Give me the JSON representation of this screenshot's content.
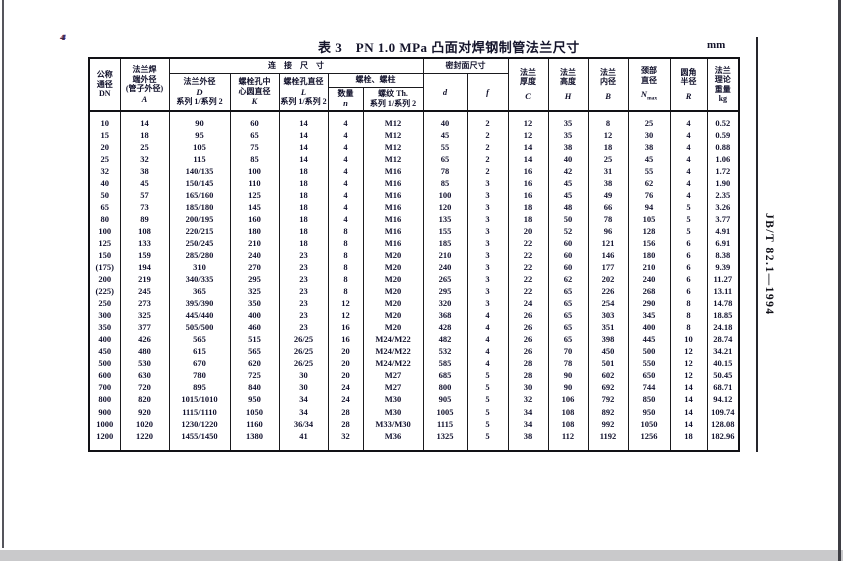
{
  "page": {
    "title": "表 3　PN 1.0 MPa 凸面对焊钢制管法兰尺寸",
    "unit": "mm",
    "standard_code": "JB/T 82.1—1994",
    "page_mark": "4"
  },
  "table": {
    "header": {
      "dn": [
        "公称",
        "通径",
        "DN"
      ],
      "a": [
        "法兰焊",
        "端外径",
        "(管子外径)",
        "A"
      ],
      "conn_group": "连　接　尺　寸",
      "d_outer": [
        "法兰外径",
        "D",
        "系列 1/系列 2"
      ],
      "k": [
        "螺栓孔中",
        "心圆直径",
        "K"
      ],
      "l": [
        "螺栓孔直径",
        "L",
        "系列 1/系列 2"
      ],
      "bolt_group": "螺栓、螺柱",
      "n": [
        "数量",
        "n"
      ],
      "th": [
        "螺纹 Th.",
        "系列 1/系列 2"
      ],
      "seal_group": "密封面尺寸",
      "d": "d",
      "f": "f",
      "c": [
        "法兰",
        "厚度",
        "C"
      ],
      "h": [
        "法兰",
        "高度",
        "H"
      ],
      "b": [
        "法兰",
        "内径",
        "B"
      ],
      "neck": [
        "颈部",
        "直径",
        "N",
        "max"
      ],
      "r": [
        "圆角",
        "半径",
        "R"
      ],
      "kg": [
        "法兰",
        "理论",
        "重量",
        "kg"
      ]
    },
    "rows": [
      [
        "10",
        "14",
        "90",
        "60",
        "14",
        "4",
        "M12",
        "40",
        "2",
        "12",
        "35",
        "8",
        "25",
        "4",
        "0.52"
      ],
      [
        "15",
        "18",
        "95",
        "65",
        "14",
        "4",
        "M12",
        "45",
        "2",
        "12",
        "35",
        "12",
        "30",
        "4",
        "0.59"
      ],
      [
        "20",
        "25",
        "105",
        "75",
        "14",
        "4",
        "M12",
        "55",
        "2",
        "14",
        "38",
        "18",
        "38",
        "4",
        "0.88"
      ],
      [
        "25",
        "32",
        "115",
        "85",
        "14",
        "4",
        "M12",
        "65",
        "2",
        "14",
        "40",
        "25",
        "45",
        "4",
        "1.06"
      ],
      [
        "32",
        "38",
        "140/135",
        "100",
        "18",
        "4",
        "M16",
        "78",
        "2",
        "16",
        "42",
        "31",
        "55",
        "4",
        "1.72"
      ],
      [
        "40",
        "45",
        "150/145",
        "110",
        "18",
        "4",
        "M16",
        "85",
        "3",
        "16",
        "45",
        "38",
        "62",
        "4",
        "1.90"
      ],
      [
        "50",
        "57",
        "165/160",
        "125",
        "18",
        "4",
        "M16",
        "100",
        "3",
        "16",
        "45",
        "49",
        "76",
        "4",
        "2.35"
      ],
      [
        "65",
        "73",
        "185/180",
        "145",
        "18",
        "4",
        "M16",
        "120",
        "3",
        "18",
        "48",
        "66",
        "94",
        "5",
        "3.26"
      ],
      [
        "80",
        "89",
        "200/195",
        "160",
        "18",
        "4",
        "M16",
        "135",
        "3",
        "18",
        "50",
        "78",
        "105",
        "5",
        "3.77"
      ],
      [
        "100",
        "108",
        "220/215",
        "180",
        "18",
        "8",
        "M16",
        "155",
        "3",
        "20",
        "52",
        "96",
        "128",
        "5",
        "4.91"
      ],
      [
        "125",
        "133",
        "250/245",
        "210",
        "18",
        "8",
        "M16",
        "185",
        "3",
        "22",
        "60",
        "121",
        "156",
        "6",
        "6.91"
      ],
      [
        "150",
        "159",
        "285/280",
        "240",
        "23",
        "8",
        "M20",
        "210",
        "3",
        "22",
        "60",
        "146",
        "180",
        "6",
        "8.38"
      ],
      [
        "(175)",
        "194",
        "310",
        "270",
        "23",
        "8",
        "M20",
        "240",
        "3",
        "22",
        "60",
        "177",
        "210",
        "6",
        "9.39"
      ],
      [
        "200",
        "219",
        "340/335",
        "295",
        "23",
        "8",
        "M20",
        "265",
        "3",
        "22",
        "62",
        "202",
        "240",
        "6",
        "11.27"
      ],
      [
        "(225)",
        "245",
        "365",
        "325",
        "23",
        "8",
        "M20",
        "295",
        "3",
        "22",
        "65",
        "226",
        "268",
        "6",
        "13.11"
      ],
      [
        "250",
        "273",
        "395/390",
        "350",
        "23",
        "12",
        "M20",
        "320",
        "3",
        "24",
        "65",
        "254",
        "290",
        "8",
        "14.78"
      ],
      [
        "300",
        "325",
        "445/440",
        "400",
        "23",
        "12",
        "M20",
        "368",
        "4",
        "26",
        "65",
        "303",
        "345",
        "8",
        "18.85"
      ],
      [
        "350",
        "377",
        "505/500",
        "460",
        "23",
        "16",
        "M20",
        "428",
        "4",
        "26",
        "65",
        "351",
        "400",
        "8",
        "24.18"
      ],
      [
        "400",
        "426",
        "565",
        "515",
        "26/25",
        "16",
        "M24/M22",
        "482",
        "4",
        "26",
        "65",
        "398",
        "445",
        "10",
        "28.74"
      ],
      [
        "450",
        "480",
        "615",
        "565",
        "26/25",
        "20",
        "M24/M22",
        "532",
        "4",
        "26",
        "70",
        "450",
        "500",
        "12",
        "34.21"
      ],
      [
        "500",
        "530",
        "670",
        "620",
        "26/25",
        "20",
        "M24/M22",
        "585",
        "4",
        "28",
        "78",
        "501",
        "550",
        "12",
        "40.15"
      ],
      [
        "600",
        "630",
        "780",
        "725",
        "30",
        "20",
        "M27",
        "685",
        "5",
        "28",
        "90",
        "602",
        "650",
        "12",
        "50.45"
      ],
      [
        "700",
        "720",
        "895",
        "840",
        "30",
        "24",
        "M27",
        "800",
        "5",
        "30",
        "90",
        "692",
        "744",
        "14",
        "68.71"
      ],
      [
        "800",
        "820",
        "1015/1010",
        "950",
        "34",
        "24",
        "M30",
        "905",
        "5",
        "32",
        "106",
        "792",
        "850",
        "14",
        "94.12"
      ],
      [
        "900",
        "920",
        "1115/1110",
        "1050",
        "34",
        "28",
        "M30",
        "1005",
        "5",
        "34",
        "108",
        "892",
        "950",
        "14",
        "109.74"
      ],
      [
        "1000",
        "1020",
        "1230/1220",
        "1160",
        "36/34",
        "28",
        "M33/M30",
        "1115",
        "5",
        "34",
        "108",
        "992",
        "1050",
        "14",
        "128.08"
      ],
      [
        "1200",
        "1220",
        "1455/1450",
        "1380",
        "41",
        "32",
        "M36",
        "1325",
        "5",
        "38",
        "112",
        "1192",
        "1256",
        "18",
        "182.96"
      ]
    ]
  }
}
